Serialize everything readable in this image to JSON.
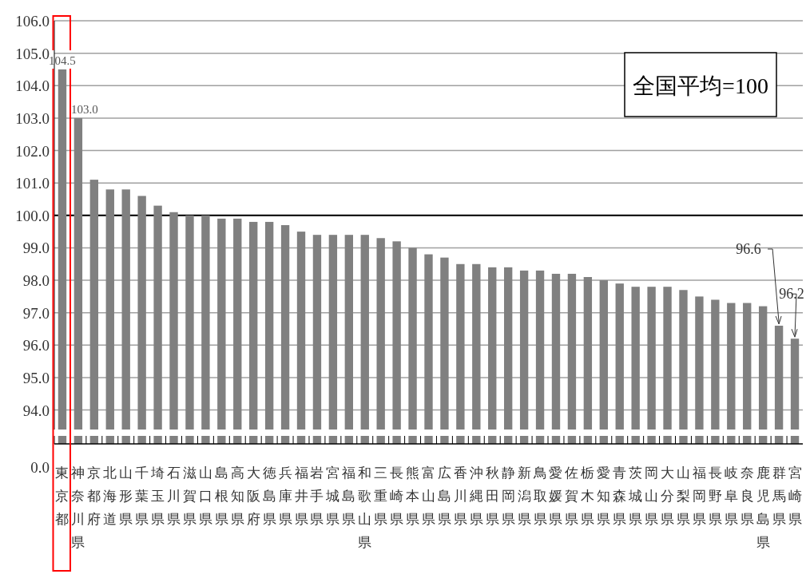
{
  "chart_data": {
    "type": "bar",
    "categories": [
      "東京都",
      "神奈川県",
      "京都府",
      "北海道",
      "山形県",
      "千葉県",
      "埼玉県",
      "石川県",
      "滋賀県",
      "山口県",
      "島根県",
      "高知県",
      "大阪府",
      "徳島県",
      "兵庫県",
      "福井県",
      "岩手県",
      "宮城県",
      "福島県",
      "和歌山県",
      "三重県",
      "長崎県",
      "熊本県",
      "富山県",
      "広島県",
      "香川県",
      "沖縄県",
      "秋田県",
      "静岡県",
      "新潟県",
      "鳥取県",
      "愛媛県",
      "佐賀県",
      "栃木県",
      "愛知県",
      "青森県",
      "茨城県",
      "岡山県",
      "大分県",
      "山梨県",
      "福岡県",
      "長野県",
      "岐阜県",
      "奈良県",
      "鹿児島県",
      "群馬県",
      "宮崎県"
    ],
    "values": [
      104.5,
      103.0,
      101.1,
      100.8,
      100.8,
      100.6,
      100.3,
      100.1,
      100.0,
      100.0,
      99.9,
      99.9,
      99.8,
      99.8,
      99.7,
      99.5,
      99.4,
      99.4,
      99.4,
      99.4,
      99.3,
      99.2,
      99.0,
      98.8,
      98.7,
      98.5,
      98.5,
      98.4,
      98.4,
      98.3,
      98.3,
      98.2,
      98.2,
      98.1,
      98.0,
      97.9,
      97.8,
      97.8,
      97.8,
      97.7,
      97.5,
      97.4,
      97.3,
      97.3,
      97.2,
      96.6,
      96.2
    ],
    "value_labels": [
      "104.5",
      "103.0",
      null,
      null,
      null,
      null,
      null,
      null,
      null,
      null,
      null,
      null,
      null,
      null,
      null,
      null,
      null,
      null,
      null,
      null,
      null,
      null,
      null,
      null,
      null,
      null,
      null,
      null,
      null,
      null,
      null,
      null,
      null,
      null,
      null,
      null,
      null,
      null,
      null,
      null,
      null,
      null,
      null,
      null,
      null,
      "96.6",
      "96.2"
    ],
    "color": "#808080",
    "ylim": [
      93.4,
      106
    ],
    "yticks": [
      {
        "value": 94,
        "label": "94.0"
      },
      {
        "value": 95,
        "label": "95.0"
      },
      {
        "value": 96,
        "label": "96.0"
      },
      {
        "value": 97,
        "label": "97.0"
      },
      {
        "value": 98,
        "label": "98.0"
      },
      {
        "value": 99,
        "label": "99.0"
      },
      {
        "value": 100,
        "label": "100.0"
      },
      {
        "value": 101,
        "label": "101.0"
      },
      {
        "value": 102,
        "label": "102.0"
      },
      {
        "value": 103,
        "label": "103.0"
      },
      {
        "value": 104,
        "label": "104.0"
      },
      {
        "value": 105,
        "label": "105.0"
      },
      {
        "value": 106,
        "label": "106.0"
      }
    ],
    "grid": "y",
    "ref_lines": [
      {
        "axis": "y",
        "value": 100,
        "color": "#000000"
      }
    ],
    "annotations": [
      "全国平均=100",
      "0.0"
    ]
  }
}
